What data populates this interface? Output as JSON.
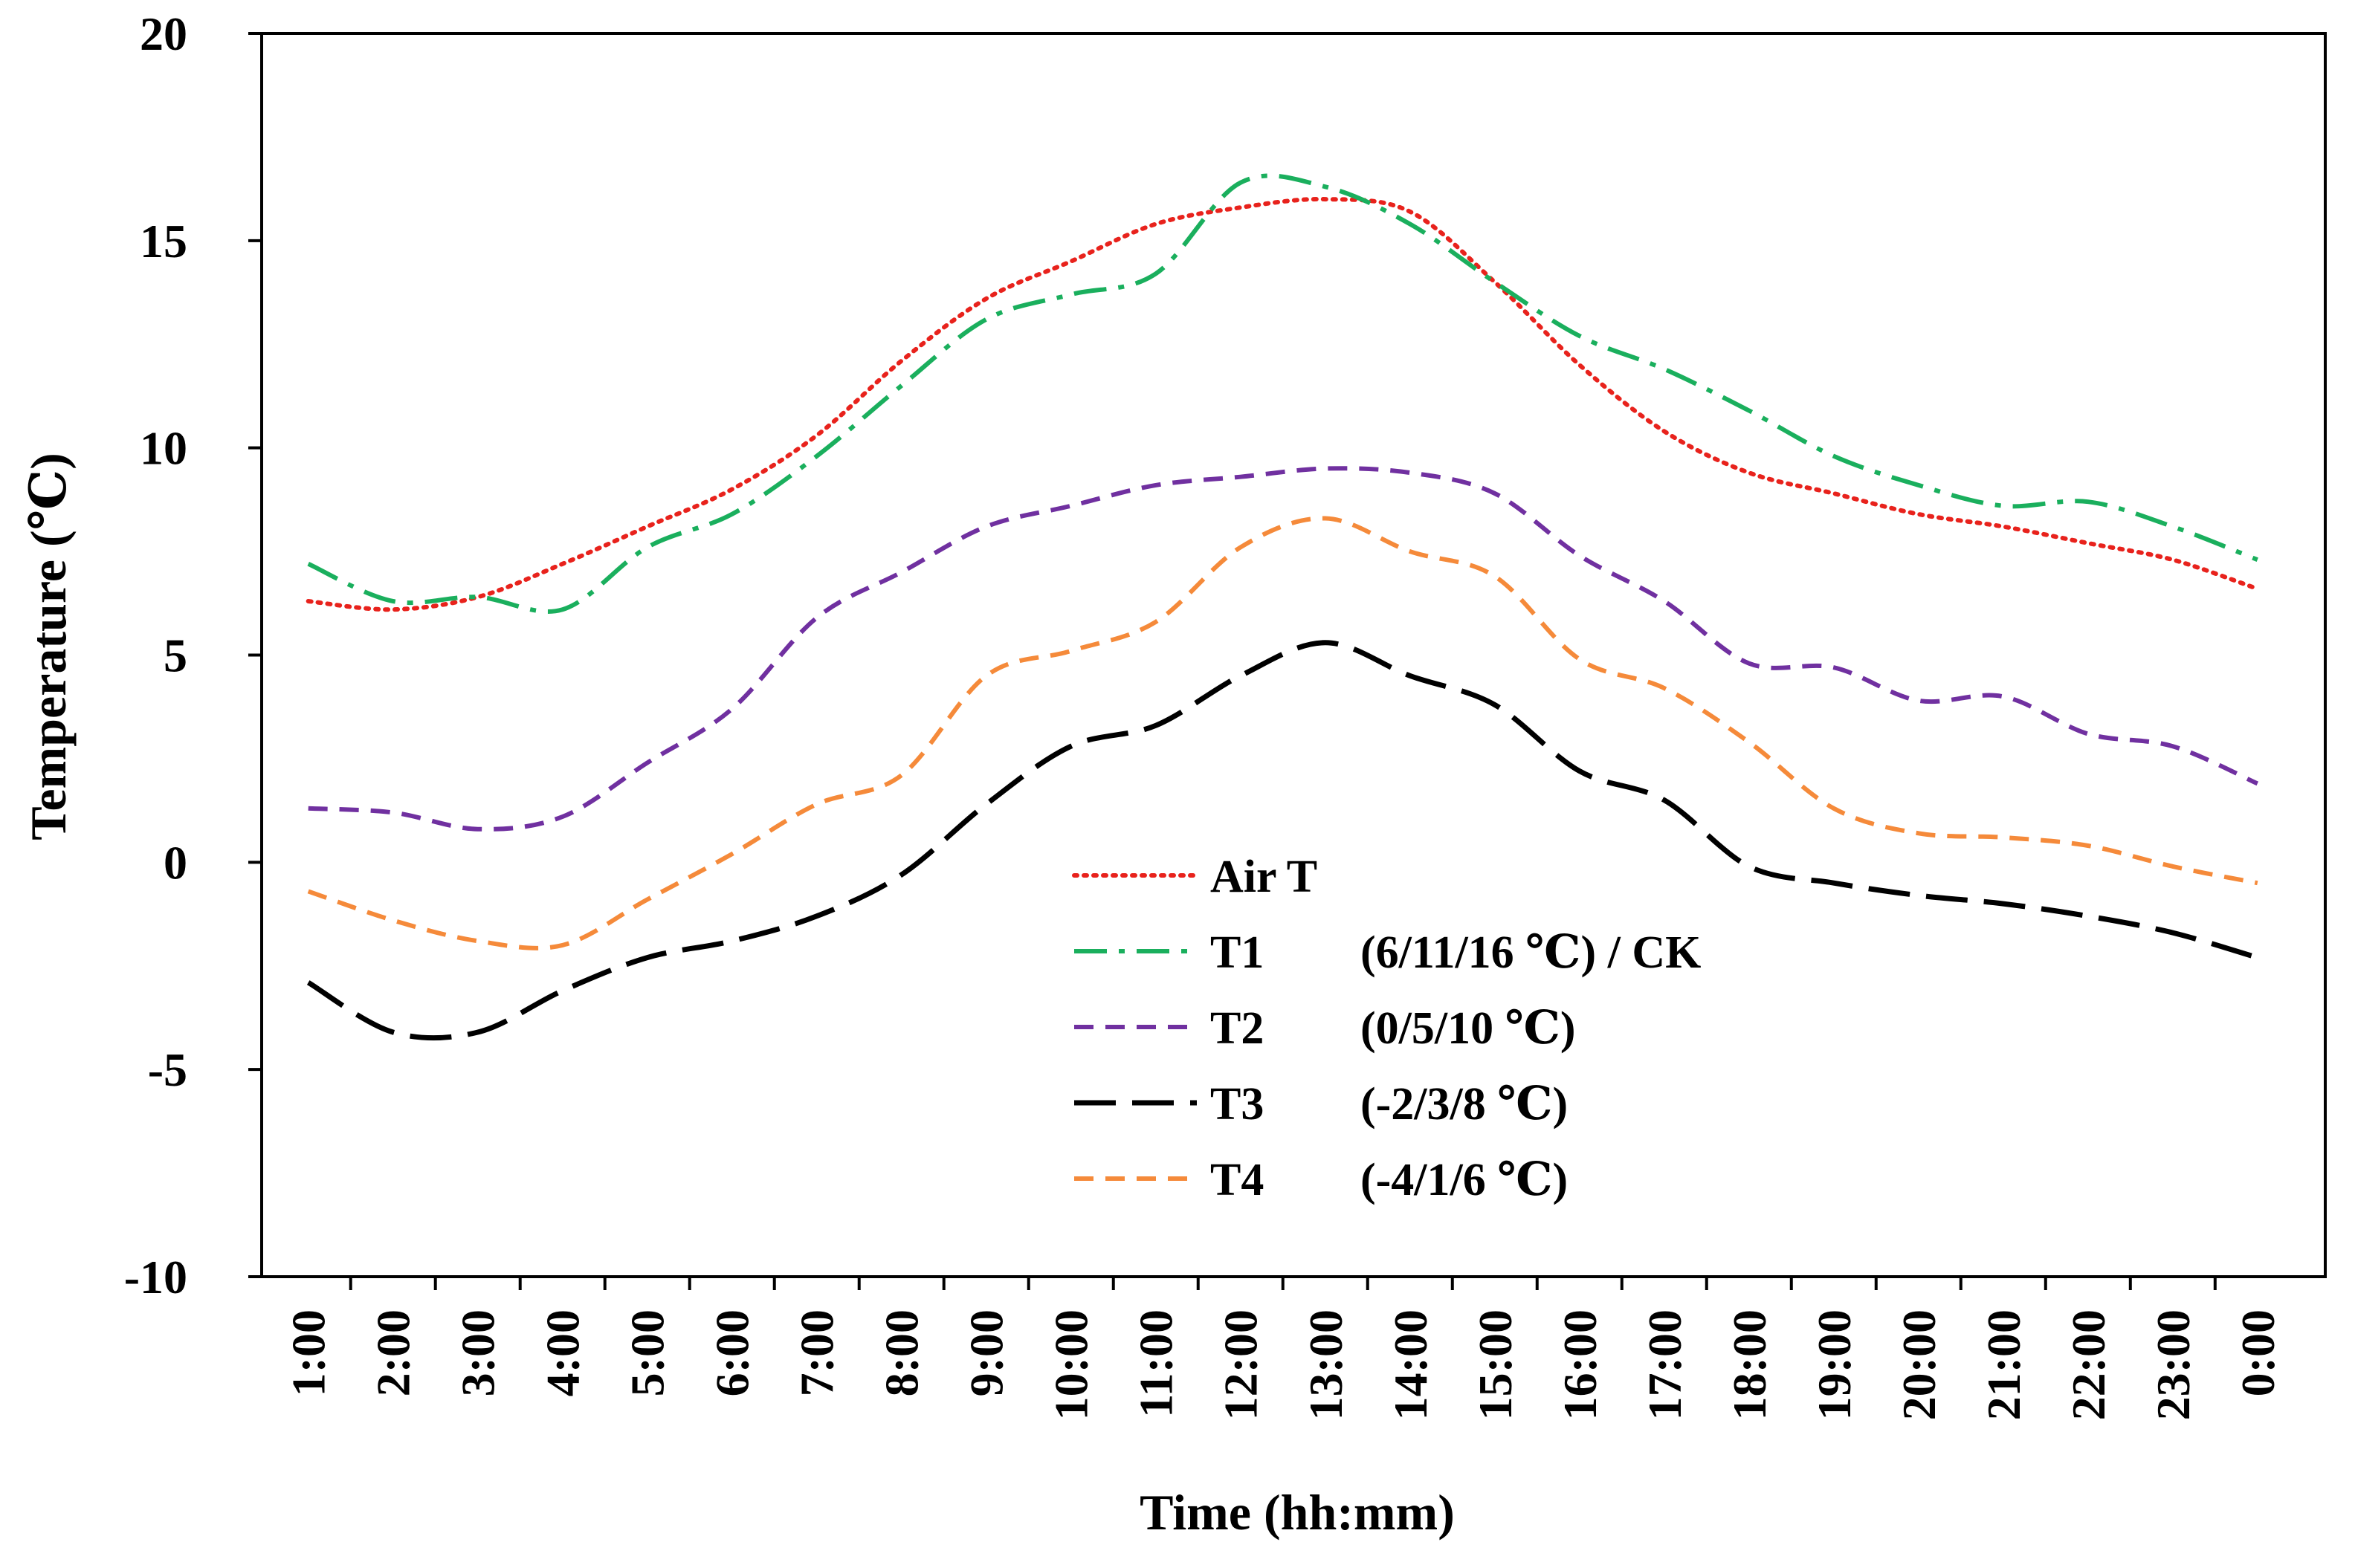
{
  "chart_data": {
    "type": "line",
    "title": "",
    "xlabel": "Time (hh:mm)",
    "ylabel": "Temperature (℃)",
    "ylim": [
      -10,
      20
    ],
    "yticks": [
      20,
      15,
      10,
      5,
      0,
      -5,
      -10
    ],
    "ytick_labels": [
      "20",
      "15",
      "10",
      "5",
      "0",
      "-5",
      "-10"
    ],
    "grid": false,
    "legend_position": "center",
    "categories": [
      "1:00",
      "2:00",
      "3:00",
      "4:00",
      "5:00",
      "6:00",
      "7:00",
      "8:00",
      "9:00",
      "10:00",
      "11:00",
      "12:00",
      "13:00",
      "14:00",
      "15:00",
      "16:00",
      "17:00",
      "18:00",
      "19:00",
      "20:00",
      "21:00",
      "22:00",
      "23:00",
      "0:00"
    ],
    "series": [
      {
        "key": "air",
        "name": "Air T",
        "condition": "",
        "color": "#e8221c",
        "dash": "dotted",
        "values": [
          6.3,
          6.1,
          6.4,
          7.2,
          8.1,
          9.0,
          10.3,
          12.1,
          13.6,
          14.5,
          15.4,
          15.8,
          16.0,
          15.7,
          14.0,
          12.0,
          10.4,
          9.4,
          8.9,
          8.4,
          8.1,
          7.7,
          7.3,
          6.6
        ]
      },
      {
        "key": "t1",
        "name": "T1",
        "condition": "(6/11/16 ℃) / CK",
        "color": "#1aaf5d",
        "dash": "dashdot",
        "values": [
          7.2,
          6.3,
          6.4,
          6.1,
          7.6,
          8.4,
          9.8,
          11.5,
          13.1,
          13.7,
          14.2,
          16.4,
          16.3,
          15.4,
          14.0,
          12.7,
          11.9,
          10.9,
          9.8,
          9.1,
          8.6,
          8.7,
          8.1,
          7.3
        ]
      },
      {
        "key": "t2",
        "name": "T2",
        "condition": "(0/5/10 ℃)",
        "color": "#7030a0",
        "dash": "dashed",
        "values": [
          1.3,
          1.2,
          0.8,
          1.1,
          2.4,
          3.7,
          5.9,
          7.0,
          8.1,
          8.6,
          9.1,
          9.3,
          9.5,
          9.4,
          8.9,
          7.4,
          6.3,
          4.8,
          4.7,
          3.9,
          4.0,
          3.1,
          2.8,
          1.9
        ]
      },
      {
        "key": "t3",
        "name": "T3",
        "condition": "(-2/3/8 ℃)",
        "color": "#000000",
        "dash": "longdash",
        "values": [
          -2.9,
          -4.1,
          -4.1,
          -3.1,
          -2.3,
          -1.9,
          -1.3,
          -0.3,
          1.4,
          2.8,
          3.3,
          4.5,
          5.3,
          4.5,
          3.8,
          2.2,
          1.5,
          -0.1,
          -0.5,
          -0.8,
          -1.0,
          -1.3,
          -1.7,
          -2.3
        ]
      },
      {
        "key": "t4",
        "name": "T4",
        "condition": "(-4/1/6 ℃)",
        "color": "#f58a3a",
        "dash": "dashed",
        "values": [
          -0.7,
          -1.4,
          -1.9,
          -2.0,
          -0.9,
          0.2,
          1.4,
          2.1,
          4.5,
          5.1,
          5.8,
          7.6,
          8.3,
          7.5,
          6.9,
          4.9,
          4.2,
          2.9,
          1.3,
          0.7,
          0.6,
          0.4,
          -0.1,
          -0.5
        ]
      }
    ]
  }
}
